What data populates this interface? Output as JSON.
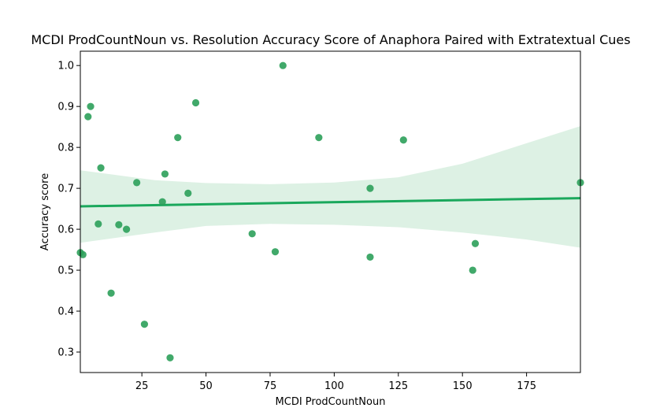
{
  "chart_data": {
    "type": "scatter",
    "title": "MCDI ProdCountNoun vs. Resolution Accuracy Score of Anaphora Paired with Extratextual Cues",
    "xlabel": "MCDI ProdCountNoun",
    "ylabel": "Accuracy score",
    "xlim": [
      1,
      196
    ],
    "ylim": [
      0.25,
      1.035
    ],
    "xticks": [
      25,
      50,
      75,
      100,
      125,
      150,
      175
    ],
    "yticks": [
      0.3,
      0.4,
      0.5,
      0.6,
      0.7,
      0.8,
      0.9,
      1.0
    ],
    "xtick_labels": [
      "25",
      "50",
      "75",
      "100",
      "125",
      "150",
      "175"
    ],
    "ytick_labels": [
      "0.3",
      "0.4",
      "0.5",
      "0.6",
      "0.7",
      "0.8",
      "0.9",
      "1.0"
    ],
    "grid": false,
    "legend": "none",
    "point_color": "#2ca05a",
    "line_color": "#1aa85c",
    "band_color": "#ddf1e4",
    "points": [
      {
        "x": 1,
        "y": 0.543
      },
      {
        "x": 2,
        "y": 0.538
      },
      {
        "x": 4,
        "y": 0.875
      },
      {
        "x": 5,
        "y": 0.9
      },
      {
        "x": 8,
        "y": 0.613
      },
      {
        "x": 9,
        "y": 0.75
      },
      {
        "x": 13,
        "y": 0.444
      },
      {
        "x": 16,
        "y": 0.611
      },
      {
        "x": 19,
        "y": 0.6
      },
      {
        "x": 23,
        "y": 0.714
      },
      {
        "x": 26,
        "y": 0.368
      },
      {
        "x": 33,
        "y": 0.667
      },
      {
        "x": 34,
        "y": 0.735
      },
      {
        "x": 36,
        "y": 0.286
      },
      {
        "x": 39,
        "y": 0.824
      },
      {
        "x": 43,
        "y": 0.688
      },
      {
        "x": 46,
        "y": 0.909
      },
      {
        "x": 68,
        "y": 0.589
      },
      {
        "x": 77,
        "y": 0.545
      },
      {
        "x": 80,
        "y": 1.0
      },
      {
        "x": 94,
        "y": 0.824
      },
      {
        "x": 114,
        "y": 0.7
      },
      {
        "x": 114,
        "y": 0.532
      },
      {
        "x": 127,
        "y": 0.818
      },
      {
        "x": 154,
        "y": 0.5
      },
      {
        "x": 155,
        "y": 0.565
      },
      {
        "x": 196,
        "y": 0.714
      }
    ],
    "regression": {
      "x": [
        1,
        196
      ],
      "y": [
        0.656,
        0.676
      ]
    },
    "confidence_band": {
      "x": [
        1,
        30,
        50,
        75,
        100,
        125,
        150,
        175,
        196
      ],
      "upper": [
        0.744,
        0.72,
        0.713,
        0.71,
        0.714,
        0.727,
        0.76,
        0.81,
        0.852
      ],
      "lower": [
        0.567,
        0.592,
        0.608,
        0.613,
        0.611,
        0.605,
        0.592,
        0.575,
        0.555
      ]
    }
  }
}
